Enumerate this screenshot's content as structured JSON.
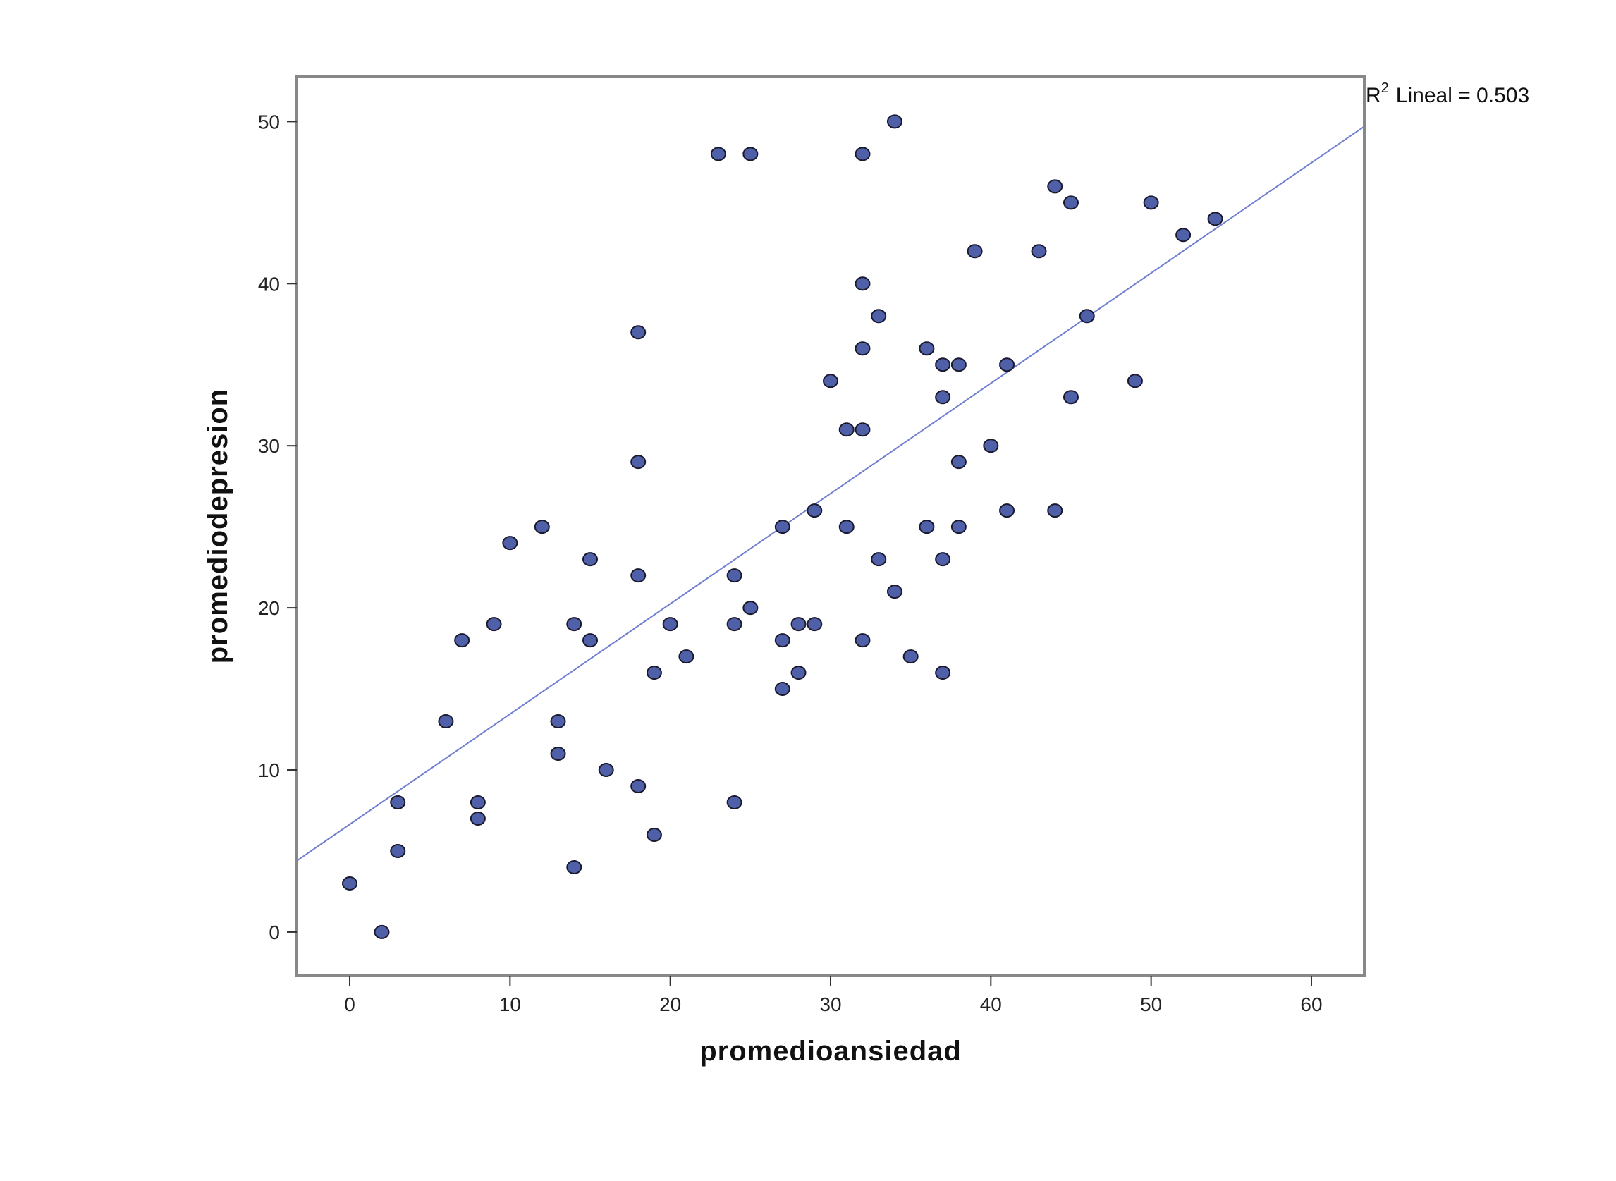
{
  "chart_data": {
    "type": "scatter",
    "xlabel": "promedioansiedad",
    "ylabel": "promediodepresion",
    "xlim": [
      -3.3,
      63.3
    ],
    "ylim": [
      -2.7,
      52.8
    ],
    "x_ticks": [
      0,
      10,
      20,
      30,
      40,
      50,
      60
    ],
    "y_ticks": [
      0,
      10,
      20,
      30,
      40,
      50
    ],
    "grid": false,
    "colors": {
      "point_fill": "#4f5fa8",
      "point_stroke": "#1a1a2e",
      "fit_line": "#6f7fd0",
      "frame": "#888888"
    },
    "fit_line": {
      "r2_prefix": "R",
      "r2_superscript": "2",
      "r2_text": "Lineal = 0.503",
      "x_start": -3.3,
      "y_start": 4.4,
      "x_end": 63.3,
      "y_end": 49.7
    },
    "points": [
      {
        "x": 0,
        "y": 3
      },
      {
        "x": 2,
        "y": 0
      },
      {
        "x": 3,
        "y": 8
      },
      {
        "x": 3,
        "y": 5
      },
      {
        "x": 6,
        "y": 13
      },
      {
        "x": 7,
        "y": 18
      },
      {
        "x": 8,
        "y": 8
      },
      {
        "x": 8,
        "y": 7
      },
      {
        "x": 9,
        "y": 19
      },
      {
        "x": 10,
        "y": 24
      },
      {
        "x": 12,
        "y": 25
      },
      {
        "x": 13,
        "y": 13
      },
      {
        "x": 13,
        "y": 11
      },
      {
        "x": 14,
        "y": 19
      },
      {
        "x": 14,
        "y": 4
      },
      {
        "x": 15,
        "y": 23
      },
      {
        "x": 15,
        "y": 18
      },
      {
        "x": 16,
        "y": 10
      },
      {
        "x": 18,
        "y": 37
      },
      {
        "x": 18,
        "y": 29
      },
      {
        "x": 18,
        "y": 22
      },
      {
        "x": 18,
        "y": 9
      },
      {
        "x": 19,
        "y": 16
      },
      {
        "x": 19,
        "y": 6
      },
      {
        "x": 20,
        "y": 19
      },
      {
        "x": 21,
        "y": 17
      },
      {
        "x": 23,
        "y": 48
      },
      {
        "x": 24,
        "y": 22
      },
      {
        "x": 24,
        "y": 19
      },
      {
        "x": 24,
        "y": 8
      },
      {
        "x": 25,
        "y": 48
      },
      {
        "x": 25,
        "y": 20
      },
      {
        "x": 27,
        "y": 25
      },
      {
        "x": 27,
        "y": 18
      },
      {
        "x": 27,
        "y": 15
      },
      {
        "x": 28,
        "y": 19
      },
      {
        "x": 28,
        "y": 16
      },
      {
        "x": 29,
        "y": 26
      },
      {
        "x": 29,
        "y": 19
      },
      {
        "x": 30,
        "y": 34
      },
      {
        "x": 31,
        "y": 31
      },
      {
        "x": 31,
        "y": 25
      },
      {
        "x": 32,
        "y": 48
      },
      {
        "x": 32,
        "y": 40
      },
      {
        "x": 32,
        "y": 36
      },
      {
        "x": 32,
        "y": 31
      },
      {
        "x": 32,
        "y": 18
      },
      {
        "x": 33,
        "y": 38
      },
      {
        "x": 33,
        "y": 23
      },
      {
        "x": 34,
        "y": 50
      },
      {
        "x": 34,
        "y": 21
      },
      {
        "x": 35,
        "y": 17
      },
      {
        "x": 36,
        "y": 36
      },
      {
        "x": 36,
        "y": 25
      },
      {
        "x": 37,
        "y": 35
      },
      {
        "x": 37,
        "y": 33
      },
      {
        "x": 37,
        "y": 23
      },
      {
        "x": 37,
        "y": 16
      },
      {
        "x": 38,
        "y": 35
      },
      {
        "x": 38,
        "y": 29
      },
      {
        "x": 38,
        "y": 25
      },
      {
        "x": 39,
        "y": 42
      },
      {
        "x": 40,
        "y": 30
      },
      {
        "x": 41,
        "y": 35
      },
      {
        "x": 41,
        "y": 26
      },
      {
        "x": 43,
        "y": 42
      },
      {
        "x": 44,
        "y": 46
      },
      {
        "x": 44,
        "y": 26
      },
      {
        "x": 45,
        "y": 45
      },
      {
        "x": 45,
        "y": 33
      },
      {
        "x": 46,
        "y": 38
      },
      {
        "x": 49,
        "y": 34
      },
      {
        "x": 50,
        "y": 45
      },
      {
        "x": 52,
        "y": 43
      },
      {
        "x": 54,
        "y": 44
      }
    ]
  }
}
